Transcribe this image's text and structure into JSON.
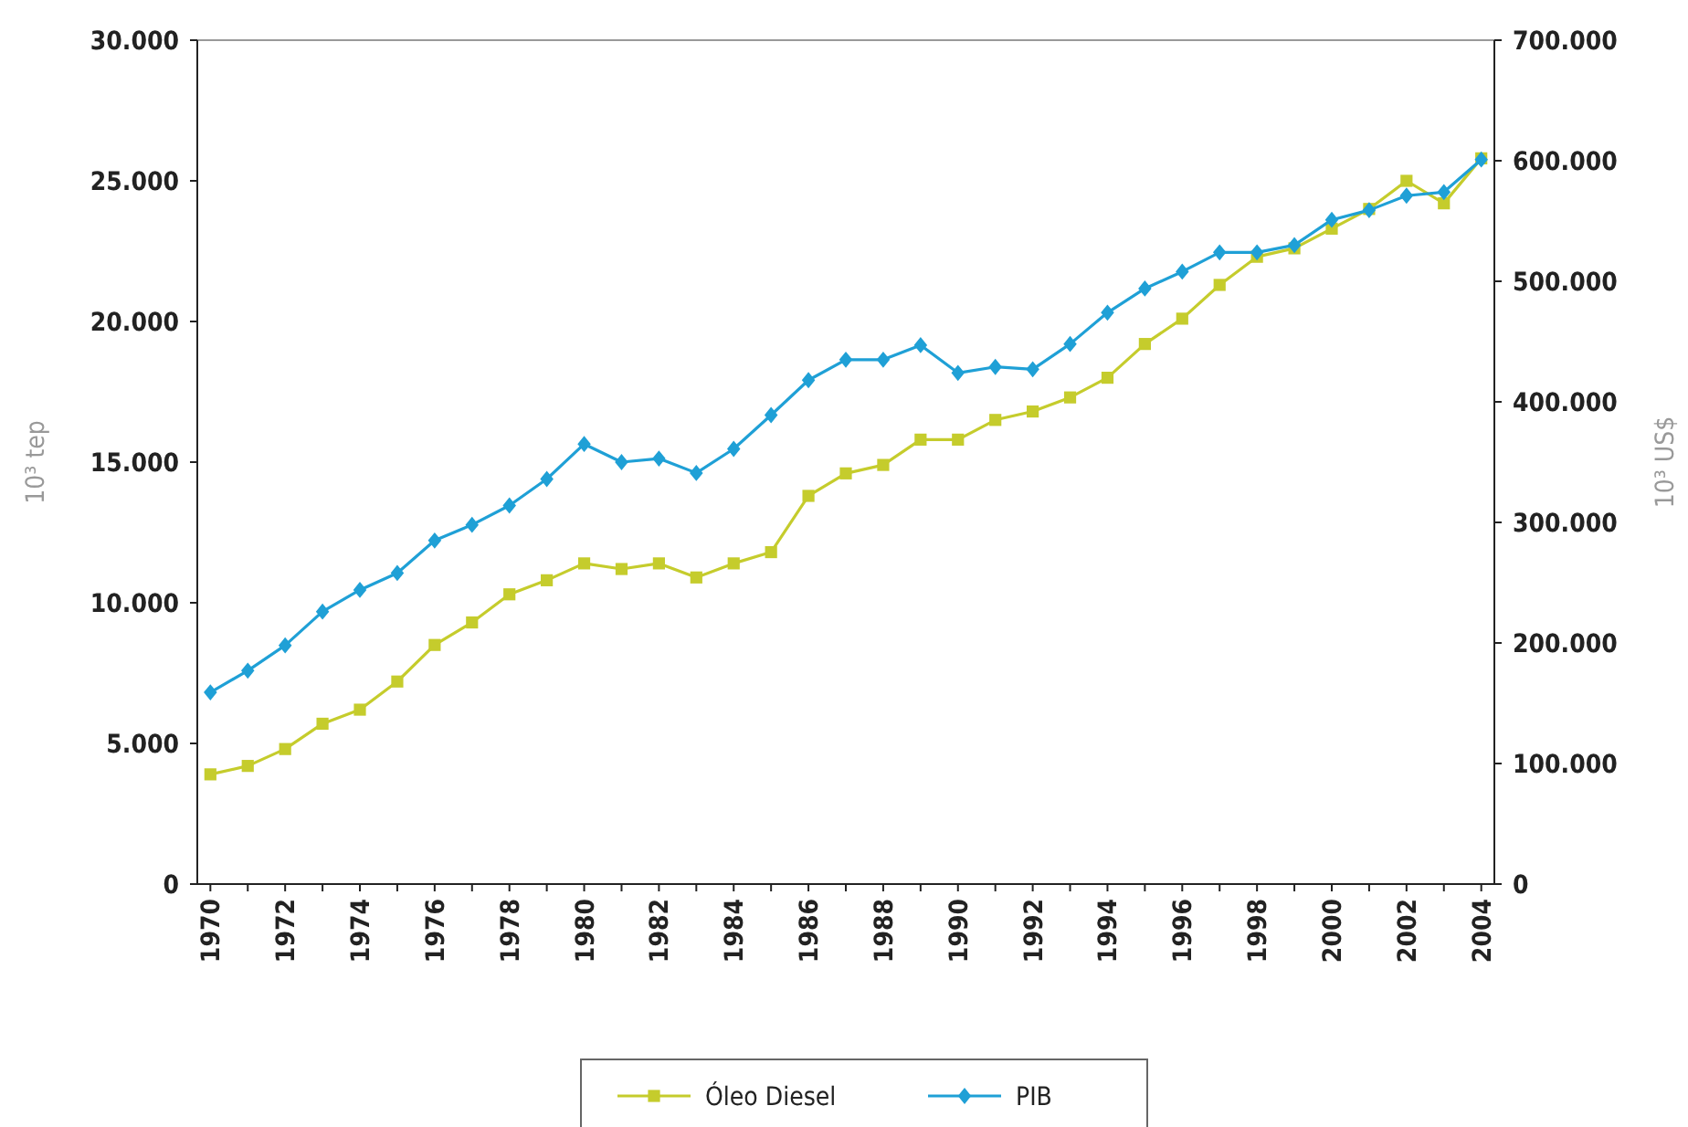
{
  "chart_data": {
    "type": "line",
    "ylabel": "10³ tep",
    "y2label": "10³ US$",
    "categories": [
      "1970",
      null,
      "1972",
      null,
      "1974",
      null,
      "1976",
      null,
      "1978",
      null,
      "1980",
      null,
      "1982",
      null,
      "1984",
      null,
      "1986",
      null,
      "1988",
      null,
      "1990",
      null,
      "1992",
      null,
      "1994",
      null,
      "1996",
      null,
      "1998",
      null,
      "2000",
      null,
      "2002",
      null,
      "2004"
    ],
    "series": [
      {
        "name": "Óleo Diesel",
        "color": "#c5cc2c",
        "marker": "square",
        "values": [
          3900,
          4200,
          4800,
          5700,
          6200,
          7200,
          8500,
          9300,
          10300,
          10800,
          11400,
          11200,
          11400,
          10900,
          11400,
          11800,
          13800,
          14600,
          14900,
          15800,
          15800,
          16500,
          16800,
          17300,
          18000,
          19200,
          20100,
          21300,
          22300,
          22600,
          23300,
          24000,
          25000,
          24200,
          25800
        ]
      },
      {
        "name": "PIB",
        "color": "#1fa0d6",
        "marker": "diamond",
        "axis": "y2",
        "values": [
          159000,
          177000,
          198000,
          226000,
          244000,
          258000,
          285000,
          298000,
          314000,
          336000,
          365000,
          350000,
          353000,
          341000,
          361000,
          389000,
          418000,
          435000,
          435000,
          447000,
          424000,
          429000,
          427000,
          448000,
          474000,
          494000,
          508000,
          524000,
          524000,
          530000,
          551000,
          559000,
          571000,
          574000,
          601000
        ]
      }
    ],
    "ylim": [
      0,
      30000
    ],
    "yticks": [
      0,
      {
        "value": 5000,
        "label": "5.000"
      },
      {
        "value": 10000,
        "label": "10.000"
      },
      {
        "value": 15000,
        "label": "15.000"
      },
      {
        "value": 20000,
        "label": "20.000"
      },
      {
        "value": 25000,
        "label": "25.000"
      },
      {
        "value": 30000,
        "label": "30.000"
      }
    ],
    "y2lim": [
      0,
      700000
    ],
    "y2ticks": [
      0,
      {
        "value": 100000,
        "label": "100.000"
      },
      {
        "value": 200000,
        "label": "200.000"
      },
      {
        "value": 300000,
        "label": "300.000"
      },
      {
        "value": 400000,
        "label": "400.000"
      },
      {
        "value": 500000,
        "label": "500.000"
      },
      {
        "value": 600000,
        "label": "600.000"
      },
      {
        "value": 700000,
        "label": "700.000"
      }
    ],
    "grid": false,
    "legend": "bottom",
    "line_style": "solid"
  }
}
